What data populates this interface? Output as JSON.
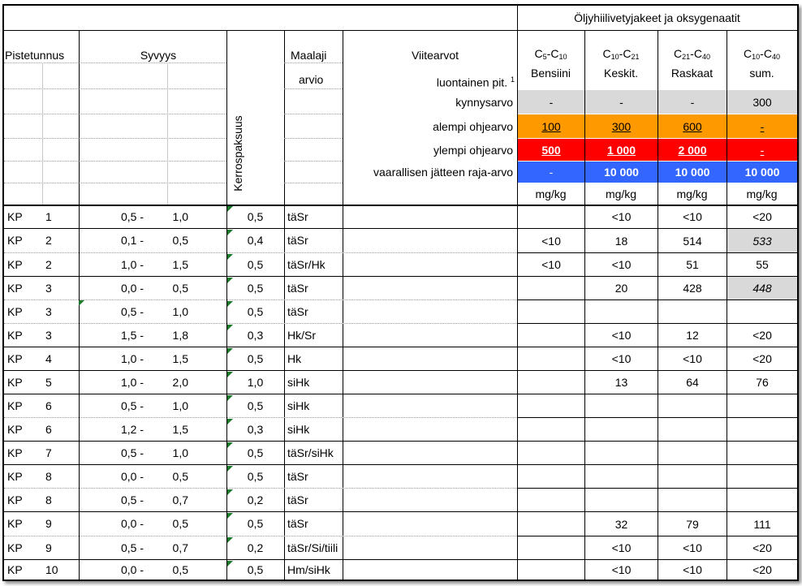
{
  "header": {
    "group_title": "Öljyhiilivetyjakeet ja oksygenaatit",
    "pistetunnus": "Pistetunnus",
    "syvyys": "Syvyys",
    "kerrospaksuus": "Kerrospaksuus",
    "maalaji_line1": "Maalaji",
    "maalaji_line2": "arvio",
    "viitearvot": "Viitearvot",
    "luontainen": "luontainen pit.",
    "luontainen_sup": "1",
    "columns": [
      {
        "base": "C",
        "sub1": "5",
        "dash": "-C",
        "sub2": "10",
        "label": "Bensiini"
      },
      {
        "base": "C",
        "sub1": "10",
        "dash": "-C",
        "sub2": "21",
        "label": "Keskit."
      },
      {
        "base": "C",
        "sub1": "21",
        "dash": "-C",
        "sub2": "40",
        "label": "Raskaat"
      },
      {
        "base": "C",
        "sub1": "10",
        "dash": "-C",
        "sub2": "40",
        "label": "sum."
      }
    ],
    "unit": "mg/kg"
  },
  "thresholds": [
    {
      "label": "kynnysarvo",
      "values": [
        "-",
        "-",
        "-",
        "300"
      ]
    },
    {
      "label": "alempi ohjearvo",
      "values": [
        "100",
        "300",
        "600",
        "-"
      ]
    },
    {
      "label": "ylempi ohjearvo",
      "values": [
        "500",
        "1 000",
        "2 000",
        "-"
      ]
    },
    {
      "label": "vaarallisen jätteen raja-arvo",
      "values": [
        "-",
        "10 000",
        "10 000",
        "10 000"
      ]
    }
  ],
  "colors": {
    "kynnysarvo": "#d9d9d9",
    "alempi": "#ff9900",
    "ylempi": "#ff0000",
    "vaarallinen": "#3366ff",
    "highlight": "#d9d9d9",
    "marker": "#1a7a2a"
  },
  "rows": [
    {
      "code": "KP",
      "num": "1",
      "from": "0,5",
      "dash": "-",
      "to": "1,0",
      "thick": "0,5",
      "soil": "täSr",
      "v1": "",
      "v2": "<10",
      "v3": "<10",
      "v4": "<20",
      "v4hl": false
    },
    {
      "code": "KP",
      "num": "2",
      "from": "0,1",
      "dash": "-",
      "to": "0,5",
      "thick": "0,4",
      "soil": "täSr",
      "v1": "<10",
      "v2": "18",
      "v3": "514",
      "v4": "533",
      "v4hl": true
    },
    {
      "code": "KP",
      "num": "2",
      "from": "1,0",
      "dash": "-",
      "to": "1,5",
      "thick": "0,5",
      "soil": "täSr/Hk",
      "v1": "<10",
      "v2": "<10",
      "v3": "51",
      "v4": "55",
      "v4hl": false
    },
    {
      "code": "KP",
      "num": "3",
      "from": "0,0",
      "dash": "-",
      "to": "0,5",
      "thick": "0,5",
      "soil": "täSr",
      "v1": "",
      "v2": "20",
      "v3": "428",
      "v4": "448",
      "v4hl": true
    },
    {
      "code": "KP",
      "num": "3",
      "from": "0,5",
      "dash": "-",
      "to": "1,0",
      "thick": "0,5",
      "soil": "täSr",
      "v1": "",
      "v2": "",
      "v3": "",
      "v4": "",
      "v4hl": false
    },
    {
      "code": "KP",
      "num": "3",
      "from": "1,5",
      "dash": "-",
      "to": "1,8",
      "thick": "0,3",
      "soil": "Hk/Sr",
      "v1": "",
      "v2": "<10",
      "v3": "12",
      "v4": "<20",
      "v4hl": false
    },
    {
      "code": "KP",
      "num": "4",
      "from": "1,0",
      "dash": "-",
      "to": "1,5",
      "thick": "0,5",
      "soil": "Hk",
      "v1": "",
      "v2": "<10",
      "v3": "<10",
      "v4": "<20",
      "v4hl": false
    },
    {
      "code": "KP",
      "num": "5",
      "from": "1,0",
      "dash": "-",
      "to": "2,0",
      "thick": "1,0",
      "soil": "siHk",
      "v1": "",
      "v2": "13",
      "v3": "64",
      "v4": "76",
      "v4hl": false
    },
    {
      "code": "KP",
      "num": "6",
      "from": "0,5",
      "dash": "-",
      "to": "1,0",
      "thick": "0,5",
      "soil": "siHk",
      "v1": "",
      "v2": "",
      "v3": "",
      "v4": "",
      "v4hl": false
    },
    {
      "code": "KP",
      "num": "6",
      "from": "1,2",
      "dash": "-",
      "to": "1,5",
      "thick": "0,3",
      "soil": "siHk",
      "v1": "",
      "v2": "",
      "v3": "",
      "v4": "",
      "v4hl": false
    },
    {
      "code": "KP",
      "num": "7",
      "from": "0,5",
      "dash": "-",
      "to": "1,0",
      "thick": "0,5",
      "soil": "täSr/siHk",
      "v1": "",
      "v2": "",
      "v3": "",
      "v4": "",
      "v4hl": false
    },
    {
      "code": "KP",
      "num": "8",
      "from": "0,0",
      "dash": "-",
      "to": "0,5",
      "thick": "0,5",
      "soil": "täSr",
      "v1": "",
      "v2": "",
      "v3": "",
      "v4": "",
      "v4hl": false
    },
    {
      "code": "KP",
      "num": "8",
      "from": "0,5",
      "dash": "-",
      "to": "0,7",
      "thick": "0,2",
      "soil": "täSr",
      "v1": "",
      "v2": "",
      "v3": "",
      "v4": "",
      "v4hl": false
    },
    {
      "code": "KP",
      "num": "9",
      "from": "0,0",
      "dash": "-",
      "to": "0,5",
      "thick": "0,5",
      "soil": "täSr",
      "v1": "",
      "v2": "32",
      "v3": "79",
      "v4": "111",
      "v4hl": false
    },
    {
      "code": "KP",
      "num": "9",
      "from": "0,5",
      "dash": "-",
      "to": "0,7",
      "thick": "0,2",
      "soil": "täSr/Si/tiili",
      "v1": "",
      "v2": "<10",
      "v3": "<10",
      "v4": "<20",
      "v4hl": false
    },
    {
      "code": "KP",
      "num": "10",
      "from": "0,0",
      "dash": "-",
      "to": "0,5",
      "thick": "0,5",
      "soil": "Hm/siHk",
      "v1": "",
      "v2": "<10",
      "v3": "<10",
      "v4": "<20",
      "v4hl": false
    }
  ]
}
